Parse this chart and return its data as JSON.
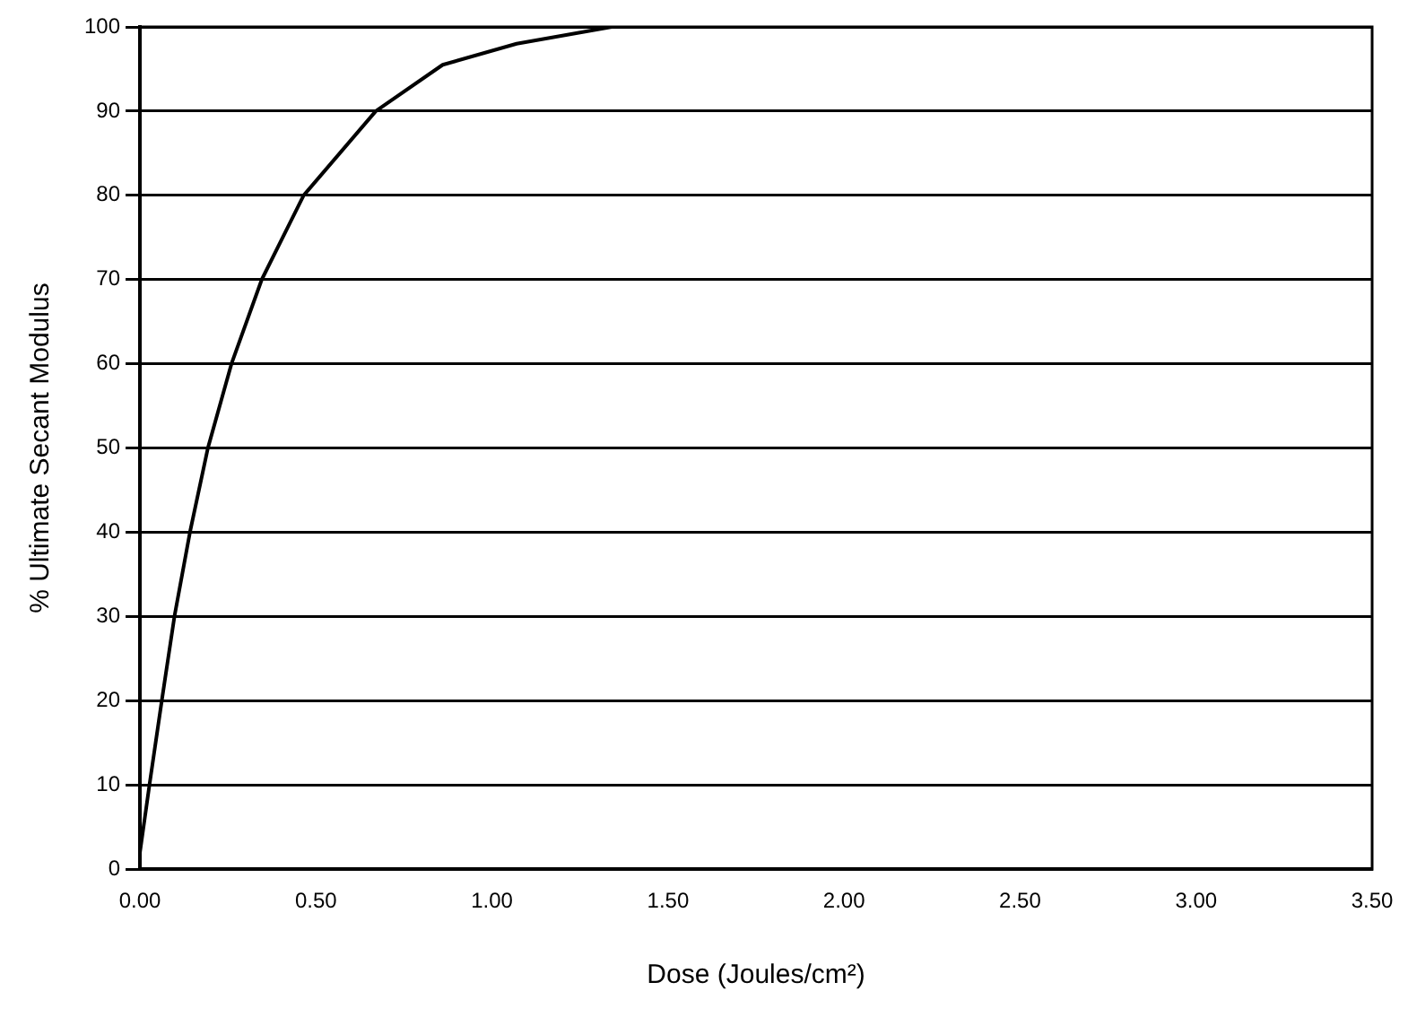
{
  "chart_data": {
    "type": "line",
    "xlabel": "Dose (Joules/cm²)",
    "ylabel": "% Ultimate Secant Modulus",
    "x": [
      0,
      0.027,
      0.062,
      0.098,
      0.142,
      0.193,
      0.26,
      0.346,
      0.465,
      0.67,
      0.86,
      1.07,
      1.34,
      1.6,
      2.0,
      2.5,
      3.0,
      3.5
    ],
    "series": [
      {
        "color": "#000000",
        "values": [
          2,
          10,
          20,
          30,
          40,
          50,
          60,
          70,
          80,
          90,
          95.5,
          98,
          100,
          100,
          100,
          100,
          100,
          100
        ]
      }
    ],
    "xlim": [
      0,
      3.5
    ],
    "xticks": [
      {
        "value": 0,
        "label": "0.00"
      },
      {
        "value": 0.5,
        "label": "0.50"
      },
      {
        "value": 1,
        "label": "1.00"
      },
      {
        "value": 1.5,
        "label": "1.50"
      },
      {
        "value": 2,
        "label": "2.00"
      },
      {
        "value": 2.5,
        "label": "2.50"
      },
      {
        "value": 3,
        "label": "3.00"
      },
      {
        "value": 3.5,
        "label": "3.50"
      }
    ],
    "ylim": [
      0,
      100
    ],
    "yticks": [
      0,
      10,
      20,
      30,
      40,
      50,
      60,
      70,
      80,
      90,
      100
    ],
    "grid": "y",
    "legend": false,
    "marker": "none",
    "line_style": "solid"
  }
}
